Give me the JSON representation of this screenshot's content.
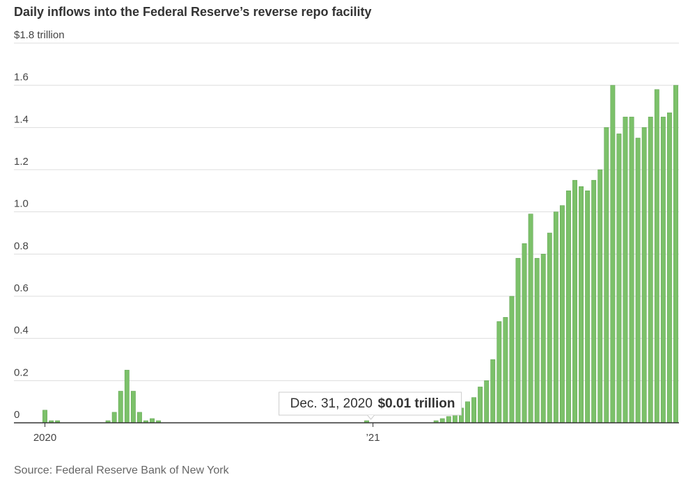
{
  "chart_data": {
    "type": "bar",
    "title": "Daily inflows into the Federal Reserve’s reverse repo facility",
    "source": "Source: Federal Reserve Bank of New York",
    "categories": [
      "2020",
      null,
      null,
      null,
      null,
      null,
      null,
      null,
      null,
      null,
      null,
      null,
      null,
      null,
      null,
      null,
      null,
      null,
      null,
      null,
      null,
      null,
      null,
      null,
      null,
      null,
      null,
      null,
      null,
      null,
      null,
      null,
      null,
      null,
      null,
      null,
      null,
      null,
      null,
      null,
      null,
      null,
      null,
      null,
      null,
      null,
      null,
      null,
      null,
      null,
      null,
      null,
      "’21",
      null,
      null,
      null,
      null,
      null,
      null,
      null,
      null,
      null,
      null,
      null,
      null,
      null,
      null,
      null,
      null,
      null,
      null,
      null,
      null,
      null,
      null,
      null,
      null,
      null,
      null,
      null,
      null,
      null,
      null,
      null,
      null,
      null,
      null,
      null,
      null,
      null,
      null,
      null,
      null,
      null,
      null,
      null,
      null,
      null,
      null,
      null,
      null
    ],
    "values": [
      0.06,
      0.01,
      0.01,
      0,
      0,
      0,
      0,
      0,
      0,
      0,
      0.01,
      0.05,
      0.15,
      0.25,
      0.15,
      0.05,
      0.01,
      0.02,
      0.01,
      0,
      0,
      0,
      0,
      0,
      0,
      0,
      0,
      0,
      0,
      0,
      0,
      0,
      0,
      0,
      0,
      0,
      0,
      0,
      0,
      0,
      0,
      0,
      0,
      0,
      0,
      0,
      0,
      0,
      0,
      0,
      0,
      0.01,
      0,
      0,
      0,
      0,
      0,
      0,
      0,
      0,
      0,
      0,
      0.01,
      0.02,
      0.03,
      0.05,
      0.07,
      0.1,
      0.12,
      0.17,
      0.2,
      0.3,
      0.48,
      0.5,
      0.6,
      0.78,
      0.85,
      0.99,
      0.78,
      0.8,
      0.9,
      1.0,
      1.03,
      1.1,
      1.15,
      1.12,
      1.1,
      1.15,
      1.2,
      1.4,
      1.6,
      1.37,
      1.45,
      1.45,
      1.35,
      1.4,
      1.45,
      1.58,
      1.45,
      1.47,
      1.6
    ],
    "color": "#7cc16a",
    "ylim": [
      0,
      1.8
    ],
    "yticks": [
      0,
      0.2,
      0.4,
      0.6,
      0.8,
      {
        "value": 1,
        "label": "1.0"
      },
      1.2,
      1.4,
      1.6,
      {
        "value": 1.8,
        "label": "$1.8 trillion"
      }
    ],
    "grid": true,
    "tooltip": {
      "date": "Dec. 31, 2020",
      "value_label": "$0.01 trillion"
    }
  }
}
